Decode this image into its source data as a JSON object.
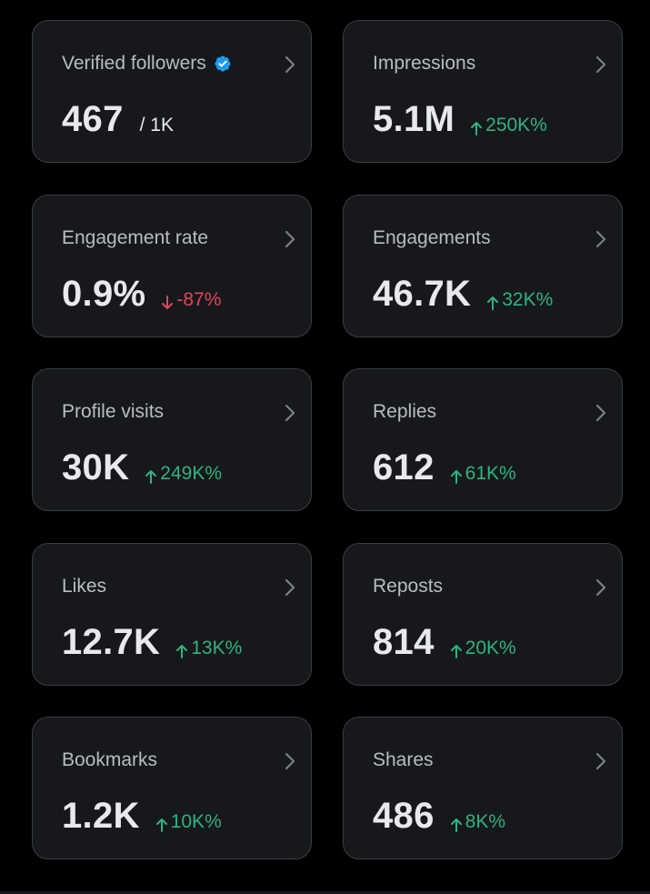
{
  "colors": {
    "background": "#000000",
    "card_background": "#16181c",
    "card_border": "#3a3e44",
    "label": "#b9bcc1",
    "value": "#e7e9ea",
    "positive": "#2fb37f",
    "negative": "#e0475c",
    "verified_badge": "#1d9bf0"
  },
  "cards": [
    {
      "label": "Verified followers",
      "value": "467",
      "sub": "/ 1K",
      "icon": "verified-badge-icon"
    },
    {
      "label": "Impressions",
      "value": "5.1M",
      "change": "250K%",
      "direction": "up"
    },
    {
      "label": "Engagement rate",
      "value": "0.9%",
      "change": "-87%",
      "direction": "down"
    },
    {
      "label": "Engagements",
      "value": "46.7K",
      "change": "32K%",
      "direction": "up"
    },
    {
      "label": "Profile visits",
      "value": "30K",
      "change": "249K%",
      "direction": "up"
    },
    {
      "label": "Replies",
      "value": "612",
      "change": "61K%",
      "direction": "up"
    },
    {
      "label": "Likes",
      "value": "12.7K",
      "change": "13K%",
      "direction": "up"
    },
    {
      "label": "Reposts",
      "value": "814",
      "change": "20K%",
      "direction": "up"
    },
    {
      "label": "Bookmarks",
      "value": "1.2K",
      "change": "10K%",
      "direction": "up"
    },
    {
      "label": "Shares",
      "value": "486",
      "change": "8K%",
      "direction": "up"
    }
  ]
}
